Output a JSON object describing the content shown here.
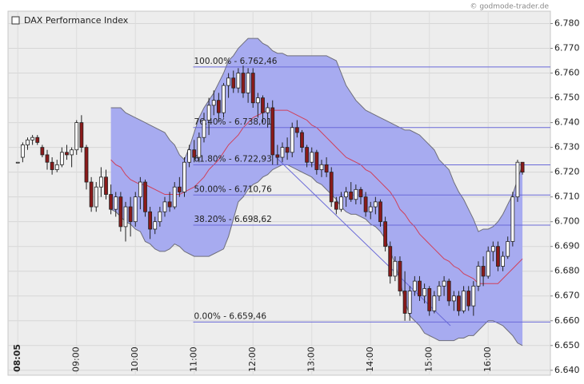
{
  "chart_data": {
    "type": "candlestick",
    "source": "© godmode-trader.de",
    "categories": [
      "08:05",
      null,
      null,
      null,
      null,
      null,
      null,
      null,
      null,
      null,
      null,
      null,
      "09:00",
      null,
      null,
      null,
      null,
      null,
      null,
      null,
      null,
      null,
      null,
      null,
      "10:00",
      null,
      null,
      null,
      null,
      null,
      null,
      null,
      null,
      null,
      null,
      null,
      "11:00",
      null,
      null,
      null,
      null,
      null,
      null,
      null,
      null,
      null,
      null,
      null,
      "12:00",
      null,
      null,
      null,
      null,
      null,
      null,
      null,
      null,
      null,
      null,
      null,
      "13:00",
      null,
      null,
      null,
      null,
      null,
      null,
      null,
      null,
      null,
      null,
      null,
      "14:00",
      null,
      null,
      null,
      null,
      null,
      null,
      null,
      null,
      null,
      null,
      null,
      "15:00",
      null,
      null,
      null,
      null,
      null,
      null,
      null,
      null,
      null,
      null,
      null,
      "16:00",
      null,
      null,
      null,
      null,
      null,
      null,
      null
    ],
    "xlim": [
      -2,
      108.7
    ],
    "ylim": [
      6638,
      6785
    ],
    "yticks": [
      {
        "value": 6640,
        "label": "6.640"
      },
      {
        "value": 6650,
        "label": "6.650"
      },
      {
        "value": 6660,
        "label": "6.660"
      },
      {
        "value": 6670,
        "label": "6.670"
      },
      {
        "value": 6680,
        "label": "6.680"
      },
      {
        "value": 6690,
        "label": "6.690"
      },
      {
        "value": 6700,
        "label": "6.700"
      },
      {
        "value": 6710,
        "label": "6.710"
      },
      {
        "value": 6720,
        "label": "6.720"
      },
      {
        "value": 6730,
        "label": "6.730"
      },
      {
        "value": 6740,
        "label": "6.740"
      },
      {
        "value": 6750,
        "label": "6.750"
      },
      {
        "value": 6760,
        "label": "6.760"
      },
      {
        "value": 6770,
        "label": "6.770"
      },
      {
        "value": 6780,
        "label": "6.780"
      }
    ],
    "grid": true,
    "series": [
      {
        "name": "DAX Performance Index",
        "up_color": "#ffffff",
        "down_color": "#8b1a1a",
        "color": "#222222",
        "open": [
          6724,
          6726,
          6731,
          6733,
          6734,
          6730,
          6727,
          6724,
          6721,
          6723,
          6728,
          6727,
          6729,
          6740,
          6730,
          6716,
          6706,
          6714,
          6718,
          6711,
          6705,
          6710,
          6698,
          6706,
          6700,
          6710,
          6716,
          6704,
          6697,
          6700,
          6704,
          6708,
          6706,
          6714,
          6712,
          6724,
          6729,
          6726,
          6734,
          6741,
          6747,
          6749,
          6744,
          6755,
          6758,
          6754,
          6760,
          6752,
          6760,
          6748,
          6750,
          6744,
          6746,
          6727,
          6726,
          6730,
          6728,
          6738,
          6736,
          6730,
          6724,
          6728,
          6721,
          6723,
          6720,
          6708,
          6705,
          6710,
          6712,
          6709,
          6713,
          6710,
          6704,
          6706,
          6708,
          6700,
          6690,
          6678,
          6684,
          6672,
          6663,
          6672,
          6676,
          6670,
          6673,
          6664,
          6670,
          6674,
          6676,
          6668,
          6670,
          6664,
          6672,
          6666,
          6674,
          6682,
          6678,
          6688,
          6690,
          6682,
          6686,
          6692,
          6710,
          6724
        ],
        "high": [
          6724,
          6732,
          6734,
          6735,
          6735,
          6731,
          6729,
          6726,
          6725,
          6730,
          6731,
          6730,
          6741,
          6743,
          6731,
          6718,
          6716,
          6722,
          6721,
          6715,
          6712,
          6712,
          6708,
          6710,
          6712,
          6718,
          6717,
          6706,
          6702,
          6706,
          6710,
          6712,
          6716,
          6718,
          6726,
          6731,
          6733,
          6736,
          6744,
          6750,
          6753,
          6752,
          6756,
          6760,
          6761,
          6762,
          6763,
          6762,
          6762,
          6752,
          6751,
          6748,
          6749,
          6731,
          6732,
          6734,
          6740,
          6741,
          6737,
          6731,
          6730,
          6729,
          6725,
          6726,
          6722,
          6710,
          6712,
          6714,
          6716,
          6715,
          6714,
          6712,
          6708,
          6710,
          6709,
          6702,
          6692,
          6686,
          6686,
          6680,
          6674,
          6678,
          6678,
          6675,
          6674,
          6672,
          6676,
          6678,
          6677,
          6672,
          6672,
          6674,
          6674,
          6676,
          6684,
          6686,
          6690,
          6692,
          6692,
          6688,
          6694,
          6712,
          6725,
          6724
        ],
        "low": [
          6724,
          6724,
          6729,
          6731,
          6731,
          6726,
          6721,
          6719,
          6720,
          6722,
          6725,
          6722,
          6727,
          6728,
          6713,
          6704,
          6704,
          6710,
          6709,
          6703,
          6702,
          6696,
          6692,
          6694,
          6698,
          6705,
          6702,
          6693,
          6695,
          6698,
          6702,
          6704,
          6705,
          6710,
          6710,
          6722,
          6724,
          6724,
          6732,
          6735,
          6743,
          6740,
          6742,
          6750,
          6752,
          6752,
          6750,
          6748,
          6746,
          6742,
          6740,
          6738,
          6723,
          6723,
          6724,
          6725,
          6726,
          6734,
          6728,
          6722,
          6722,
          6719,
          6718,
          6718,
          6706,
          6703,
          6704,
          6706,
          6708,
          6707,
          6707,
          6702,
          6701,
          6703,
          6698,
          6688,
          6675,
          6676,
          6670,
          6660,
          6660,
          6670,
          6668,
          6667,
          6662,
          6663,
          6668,
          6670,
          6666,
          6664,
          6662,
          6663,
          6664,
          6662,
          6672,
          6674,
          6677,
          6684,
          6680,
          6680,
          6685,
          6690,
          6708,
          6719
        ],
        "close": [
          6724,
          6731,
          6733,
          6734,
          6732,
          6727,
          6724,
          6721,
          6723,
          6728,
          6727,
          6729,
          6740,
          6730,
          6716,
          6706,
          6714,
          6718,
          6711,
          6705,
          6710,
          6698,
          6706,
          6700,
          6710,
          6716,
          6704,
          6697,
          6700,
          6704,
          6708,
          6706,
          6714,
          6712,
          6724,
          6729,
          6726,
          6734,
          6741,
          6747,
          6749,
          6744,
          6755,
          6758,
          6754,
          6760,
          6752,
          6760,
          6748,
          6750,
          6744,
          6746,
          6727,
          6726,
          6730,
          6728,
          6738,
          6736,
          6730,
          6724,
          6728,
          6721,
          6723,
          6720,
          6708,
          6705,
          6710,
          6712,
          6709,
          6713,
          6710,
          6704,
          6706,
          6708,
          6700,
          6690,
          6678,
          6684,
          6672,
          6663,
          6672,
          6676,
          6670,
          6673,
          6664,
          6670,
          6674,
          6676,
          6668,
          6670,
          6664,
          6672,
          6666,
          6674,
          6682,
          6678,
          6688,
          6690,
          6682,
          6686,
          6692,
          6710,
          6724,
          6720
        ]
      }
    ],
    "bands": {
      "fill": "#a7abf0",
      "edge_color": "#6e6e7a",
      "middle_color": "#d0405a",
      "upper": [
        null,
        null,
        null,
        null,
        null,
        null,
        null,
        null,
        null,
        null,
        null,
        null,
        null,
        null,
        null,
        null,
        null,
        null,
        null,
        6746,
        6746,
        6746,
        6744,
        6743,
        6742,
        6741,
        6740,
        6739,
        6738,
        6737,
        6736,
        6733,
        6731,
        6727,
        6725,
        6730,
        6736,
        6742,
        6746,
        6749,
        6752,
        6756,
        6760,
        6765,
        6767,
        6770,
        6772,
        6774,
        6774,
        6774,
        6772,
        6771,
        6769,
        6768,
        6768,
        6767,
        6767,
        6767,
        6767,
        6767,
        6767,
        6767,
        6767,
        6767,
        6766,
        6765,
        6760,
        6755,
        6752,
        6749,
        6747,
        6745,
        6744,
        6743,
        6742,
        6741,
        6740,
        6739,
        6738,
        6737,
        6737,
        6736,
        6735,
        6733,
        6731,
        6729,
        6725,
        6723,
        6721,
        6716,
        6712,
        6709,
        6705,
        6701,
        6696,
        6697,
        6697,
        6698,
        6700,
        6703,
        6707,
        6711,
        6717,
        6723
      ],
      "middle": [
        null,
        null,
        null,
        null,
        null,
        null,
        null,
        null,
        null,
        null,
        null,
        null,
        null,
        null,
        null,
        null,
        null,
        null,
        null,
        6725,
        6723,
        6722,
        6719,
        6717,
        6716,
        6715,
        6715,
        6714,
        6713,
        6712,
        6711,
        6711,
        6711,
        6711,
        6712,
        6713,
        6714,
        6716,
        6718,
        6721,
        6723,
        6725,
        6728,
        6731,
        6733,
        6735,
        6738,
        6740,
        6742,
        6743,
        6744,
        6745,
        6745,
        6745,
        6745,
        6745,
        6744,
        6743,
        6742,
        6741,
        6739,
        6738,
        6736,
        6734,
        6732,
        6730,
        6728,
        6726,
        6725,
        6724,
        6723,
        6721,
        6720,
        6718,
        6716,
        6714,
        6712,
        6709,
        6705,
        6703,
        6700,
        6698,
        6695,
        6693,
        6691,
        6689,
        6687,
        6685,
        6684,
        6682,
        6681,
        6679,
        6678,
        6677,
        6675,
        6675,
        6675,
        6675,
        6675,
        6677,
        6679,
        6681,
        6683,
        6685
      ],
      "lower": [
        null,
        null,
        null,
        null,
        null,
        null,
        null,
        null,
        null,
        null,
        null,
        null,
        null,
        null,
        null,
        null,
        null,
        null,
        null,
        6705,
        6704,
        6702,
        6700,
        6699,
        6697,
        6696,
        6692,
        6691,
        6689,
        6688,
        6688,
        6689,
        6691,
        6690,
        6688,
        6687,
        6686,
        6686,
        6686,
        6686,
        6687,
        6688,
        6689,
        6694,
        6701,
        6708,
        6710,
        6713,
        6715,
        6716,
        6718,
        6719,
        6721,
        6722,
        6723,
        6723,
        6722,
        6721,
        6720,
        6719,
        6718,
        6716,
        6715,
        6713,
        6711,
        6709,
        6706,
        6704,
        6703,
        6703,
        6702,
        6701,
        6699,
        6698,
        6696,
        6693,
        6688,
        6683,
        6676,
        6668,
        6662,
        6660,
        6658,
        6655,
        6654,
        6653,
        6652,
        6652,
        6652,
        6652,
        6653,
        6653,
        6654,
        6654,
        6656,
        6658,
        6660,
        6660,
        6659,
        6658,
        6656,
        6654,
        6651,
        6650
      ]
    },
    "fib_color": "#6a6ad8",
    "fib_start": 35.8,
    "fib_levels": [
      {
        "value": 6762.46,
        "label": "100.00% - 6.762,46"
      },
      {
        "value": 6738.01,
        "label": "76.40% - 6.738,01"
      },
      {
        "value": 6722.93,
        "label": "61.80% - 6.722,93"
      },
      {
        "value": 6710.76,
        "label": "50.00% - 6.710,76"
      },
      {
        "value": 6698.62,
        "label": "38.20% - 6.698,62"
      },
      {
        "value": 6659.46,
        "label": "0.00% - 6.659,46"
      }
    ],
    "trendline": {
      "x": [
        52.7,
        88.3
      ],
      "y": [
        6726,
        6658
      ]
    }
  }
}
